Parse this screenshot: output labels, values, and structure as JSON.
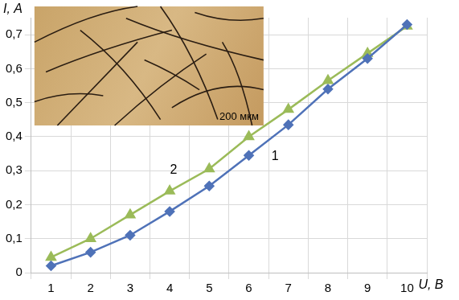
{
  "chart_data": {
    "type": "line",
    "x_label": "U, В",
    "y_label": "I, А",
    "categories": [
      "1",
      "2",
      "3",
      "4",
      "5",
      "6",
      "7",
      "8",
      "9",
      "10"
    ],
    "series": [
      {
        "name": "1",
        "color": "#4f72b8",
        "marker": "diamond",
        "values": [
          0.02,
          0.06,
          0.11,
          0.18,
          0.255,
          0.345,
          0.435,
          0.54,
          0.63,
          0.73
        ]
      },
      {
        "name": "2",
        "color": "#9bbb59",
        "marker": "triangle",
        "values": [
          0.045,
          0.1,
          0.17,
          0.24,
          0.305,
          0.4,
          0.48,
          0.565,
          0.645,
          0.725
        ]
      }
    ],
    "ylim": [
      0,
      0.75
    ],
    "yticks": [
      0,
      {
        "value": 0.1,
        "label": "0,1"
      },
      {
        "value": 0.2,
        "label": "0,2"
      },
      {
        "value": 0.3,
        "label": "0,3"
      },
      {
        "value": 0.4,
        "label": "0,4"
      },
      {
        "value": 0.5,
        "label": "0,5"
      },
      {
        "value": 0.6,
        "label": "0,6"
      },
      {
        "value": 0.7,
        "label": "0,7"
      }
    ],
    "grid": true,
    "annotations": [
      "200 мкм"
    ]
  }
}
